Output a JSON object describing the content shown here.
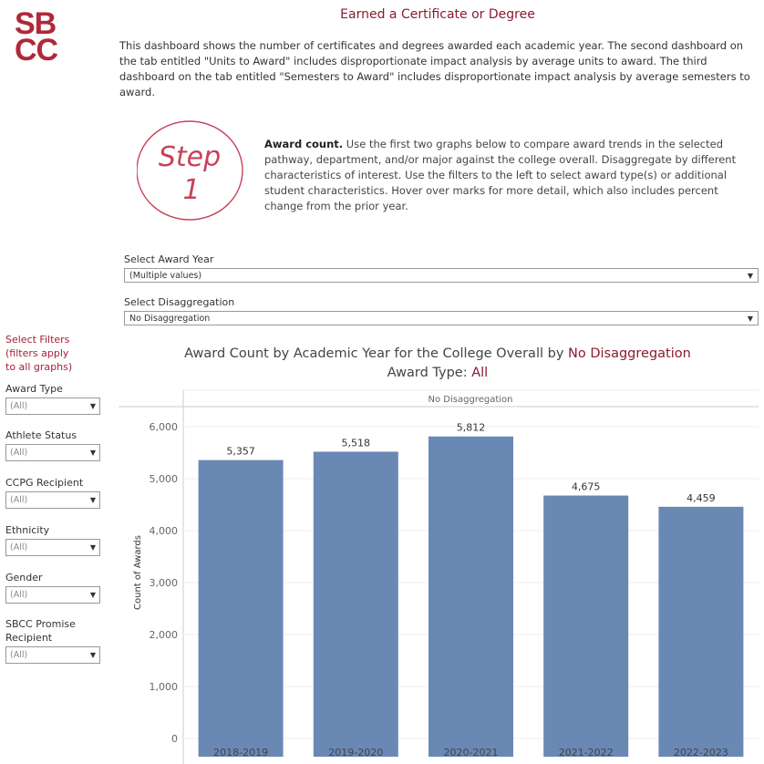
{
  "logo": {
    "text": "SBCC",
    "color": "#b0283a"
  },
  "header": {
    "title": "Earned a Certificate or Degree",
    "intro": "This dashboard shows the number of certificates and degrees awarded each academic year. The second dashboard on the tab entitled \"Units to Award\" includes disproportionate impact analysis by average units to award. The third dashboard on the tab entitled \"Semesters to Award\" includes disproportionate impact analysis by average semesters to award."
  },
  "step": {
    "badge_text": "Step 1",
    "heading": "Award count.",
    "body": " Use the first two graphs below to compare award trends in the selected pathway, department, and/or major against the college overall. Disaggregate by different characteristics of interest. Use the filters to the left to select award type(s) or additional student characteristics. Hover over marks for more detail, which also includes percent change from the prior year."
  },
  "selectors": [
    {
      "label": "Select Award Year",
      "value": "(Multiple values)"
    },
    {
      "label": "Select Disaggregation",
      "value": "No Disaggregation"
    }
  ],
  "filters": {
    "heading": [
      "Select Filters",
      "(filters apply",
      "to all graphs)"
    ],
    "items": [
      {
        "label": "Award Type",
        "value": "(All)"
      },
      {
        "label": "Athlete Status",
        "value": "(All)"
      },
      {
        "label": "CCPG Recipient",
        "value": "(All)"
      },
      {
        "label": "Ethnicity",
        "value": "(All)"
      },
      {
        "label": "Gender",
        "value": "(All)"
      },
      {
        "label": "SBCC Promise Recipient",
        "value": "(All)"
      }
    ]
  },
  "chart_title": {
    "prefix": "Award Count by Academic Year for the College Overall by ",
    "highlight": "No Disaggregation",
    "line2_prefix": "Award Type: ",
    "line2_highlight": "All"
  },
  "chart_data": {
    "type": "bar",
    "panel_header": "No Disaggregation",
    "categories": [
      "2018-2019",
      "2019-2020",
      "2020-2021",
      "2021-2022",
      "2022-2023"
    ],
    "values": [
      5357,
      5518,
      5812,
      4675,
      4459
    ],
    "data_labels": [
      "5,357",
      "5,518",
      "5,812",
      "4,675",
      "4,459"
    ],
    "ylabel": "Count of Awards",
    "yticks": [
      0,
      1000,
      2000,
      3000,
      4000,
      5000,
      6000
    ],
    "ytick_labels": [
      "0",
      "1,000",
      "2,000",
      "3,000",
      "4,000",
      "5,000",
      "6,000"
    ],
    "ylim": [
      0,
      6000
    ],
    "grid": true,
    "bar_color": "#6a88b4"
  }
}
